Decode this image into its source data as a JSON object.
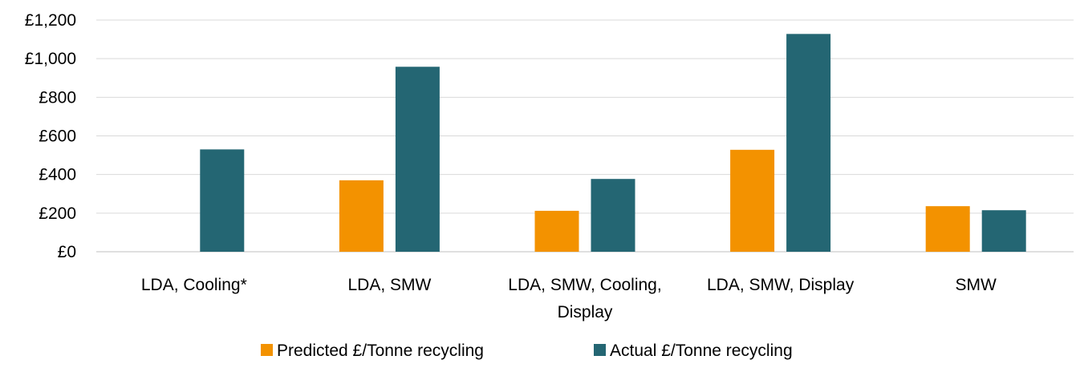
{
  "chart_data": {
    "type": "bar",
    "categories": [
      [
        "LDA, Cooling*"
      ],
      [
        "LDA, SMW"
      ],
      [
        "LDA, SMW, Cooling,",
        "Display"
      ],
      [
        "LDA, SMW, Display"
      ],
      [
        "SMW"
      ]
    ],
    "series": [
      {
        "name": "Predicted £/Tonne recycling",
        "color": "#F39200",
        "values": [
          null,
          370,
          212,
          528,
          236
        ]
      },
      {
        "name": "Actual £/Tonne recycling",
        "color": "#246673",
        "values": [
          530,
          958,
          377,
          1128,
          215
        ]
      }
    ],
    "ylim": [
      0,
      1200
    ],
    "yticks": [
      0,
      200,
      400,
      600,
      800,
      1000,
      1200
    ],
    "ytick_labels": [
      "£0",
      "£200",
      "£400",
      "£600",
      "£800",
      "£1,000",
      "£1,200"
    ],
    "grid": true,
    "legend": "bottom"
  }
}
